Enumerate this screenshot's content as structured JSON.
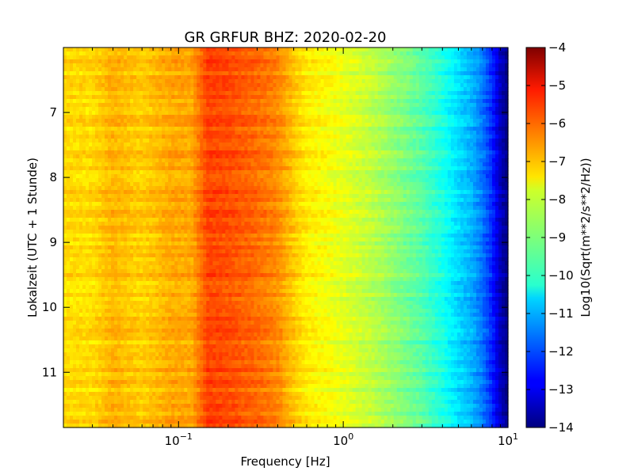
{
  "chart_data": {
    "type": "heatmap",
    "title": "GR GRFUR BHZ: 2020-02-20",
    "xlabel": "Frequency [Hz]",
    "ylabel": "Lokalzeit (UTC + 1 Stunde)",
    "x_scale": "log",
    "xlim": [
      0.02,
      10
    ],
    "ylim": [
      11.85,
      6.0
    ],
    "x_ticks": [
      {
        "value": 0.1,
        "base": "10",
        "exp": "−1"
      },
      {
        "value": 1,
        "base": "10",
        "exp": "0"
      },
      {
        "value": 10,
        "base": "10",
        "exp": "1"
      }
    ],
    "y_ticks": [
      "7",
      "8",
      "9",
      "10",
      "11"
    ],
    "colorbar": {
      "label": "Log10(Sqrt(m**2/s**2/Hz))",
      "colormap": "jet",
      "range": [
        -14,
        -4
      ],
      "ticks": [
        "−4",
        "−5",
        "−6",
        "−7",
        "−8",
        "−9",
        "−10",
        "−11",
        "−12",
        "−13",
        "−14"
      ]
    },
    "profile": {
      "description_unit": "log10 amplitude vs frequency (Hz)",
      "freq": [
        0.02,
        0.03,
        0.04,
        0.06,
        0.09,
        0.12,
        0.15,
        0.2,
        0.3,
        0.4,
        0.5,
        0.6,
        0.8,
        1.0,
        1.5,
        2.0,
        3.0,
        4.0,
        5.0,
        6.0,
        7.0,
        8.0,
        9.0,
        10.0
      ],
      "value": [
        -7.4,
        -7.4,
        -7.0,
        -7.3,
        -6.9,
        -6.9,
        -5.9,
        -6.0,
        -6.3,
        -6.6,
        -7.2,
        -7.6,
        -7.8,
        -8.0,
        -8.4,
        -8.8,
        -9.4,
        -10.0,
        -10.6,
        -11.0,
        -11.6,
        -12.4,
        -13.4,
        -14.0
      ]
    }
  }
}
